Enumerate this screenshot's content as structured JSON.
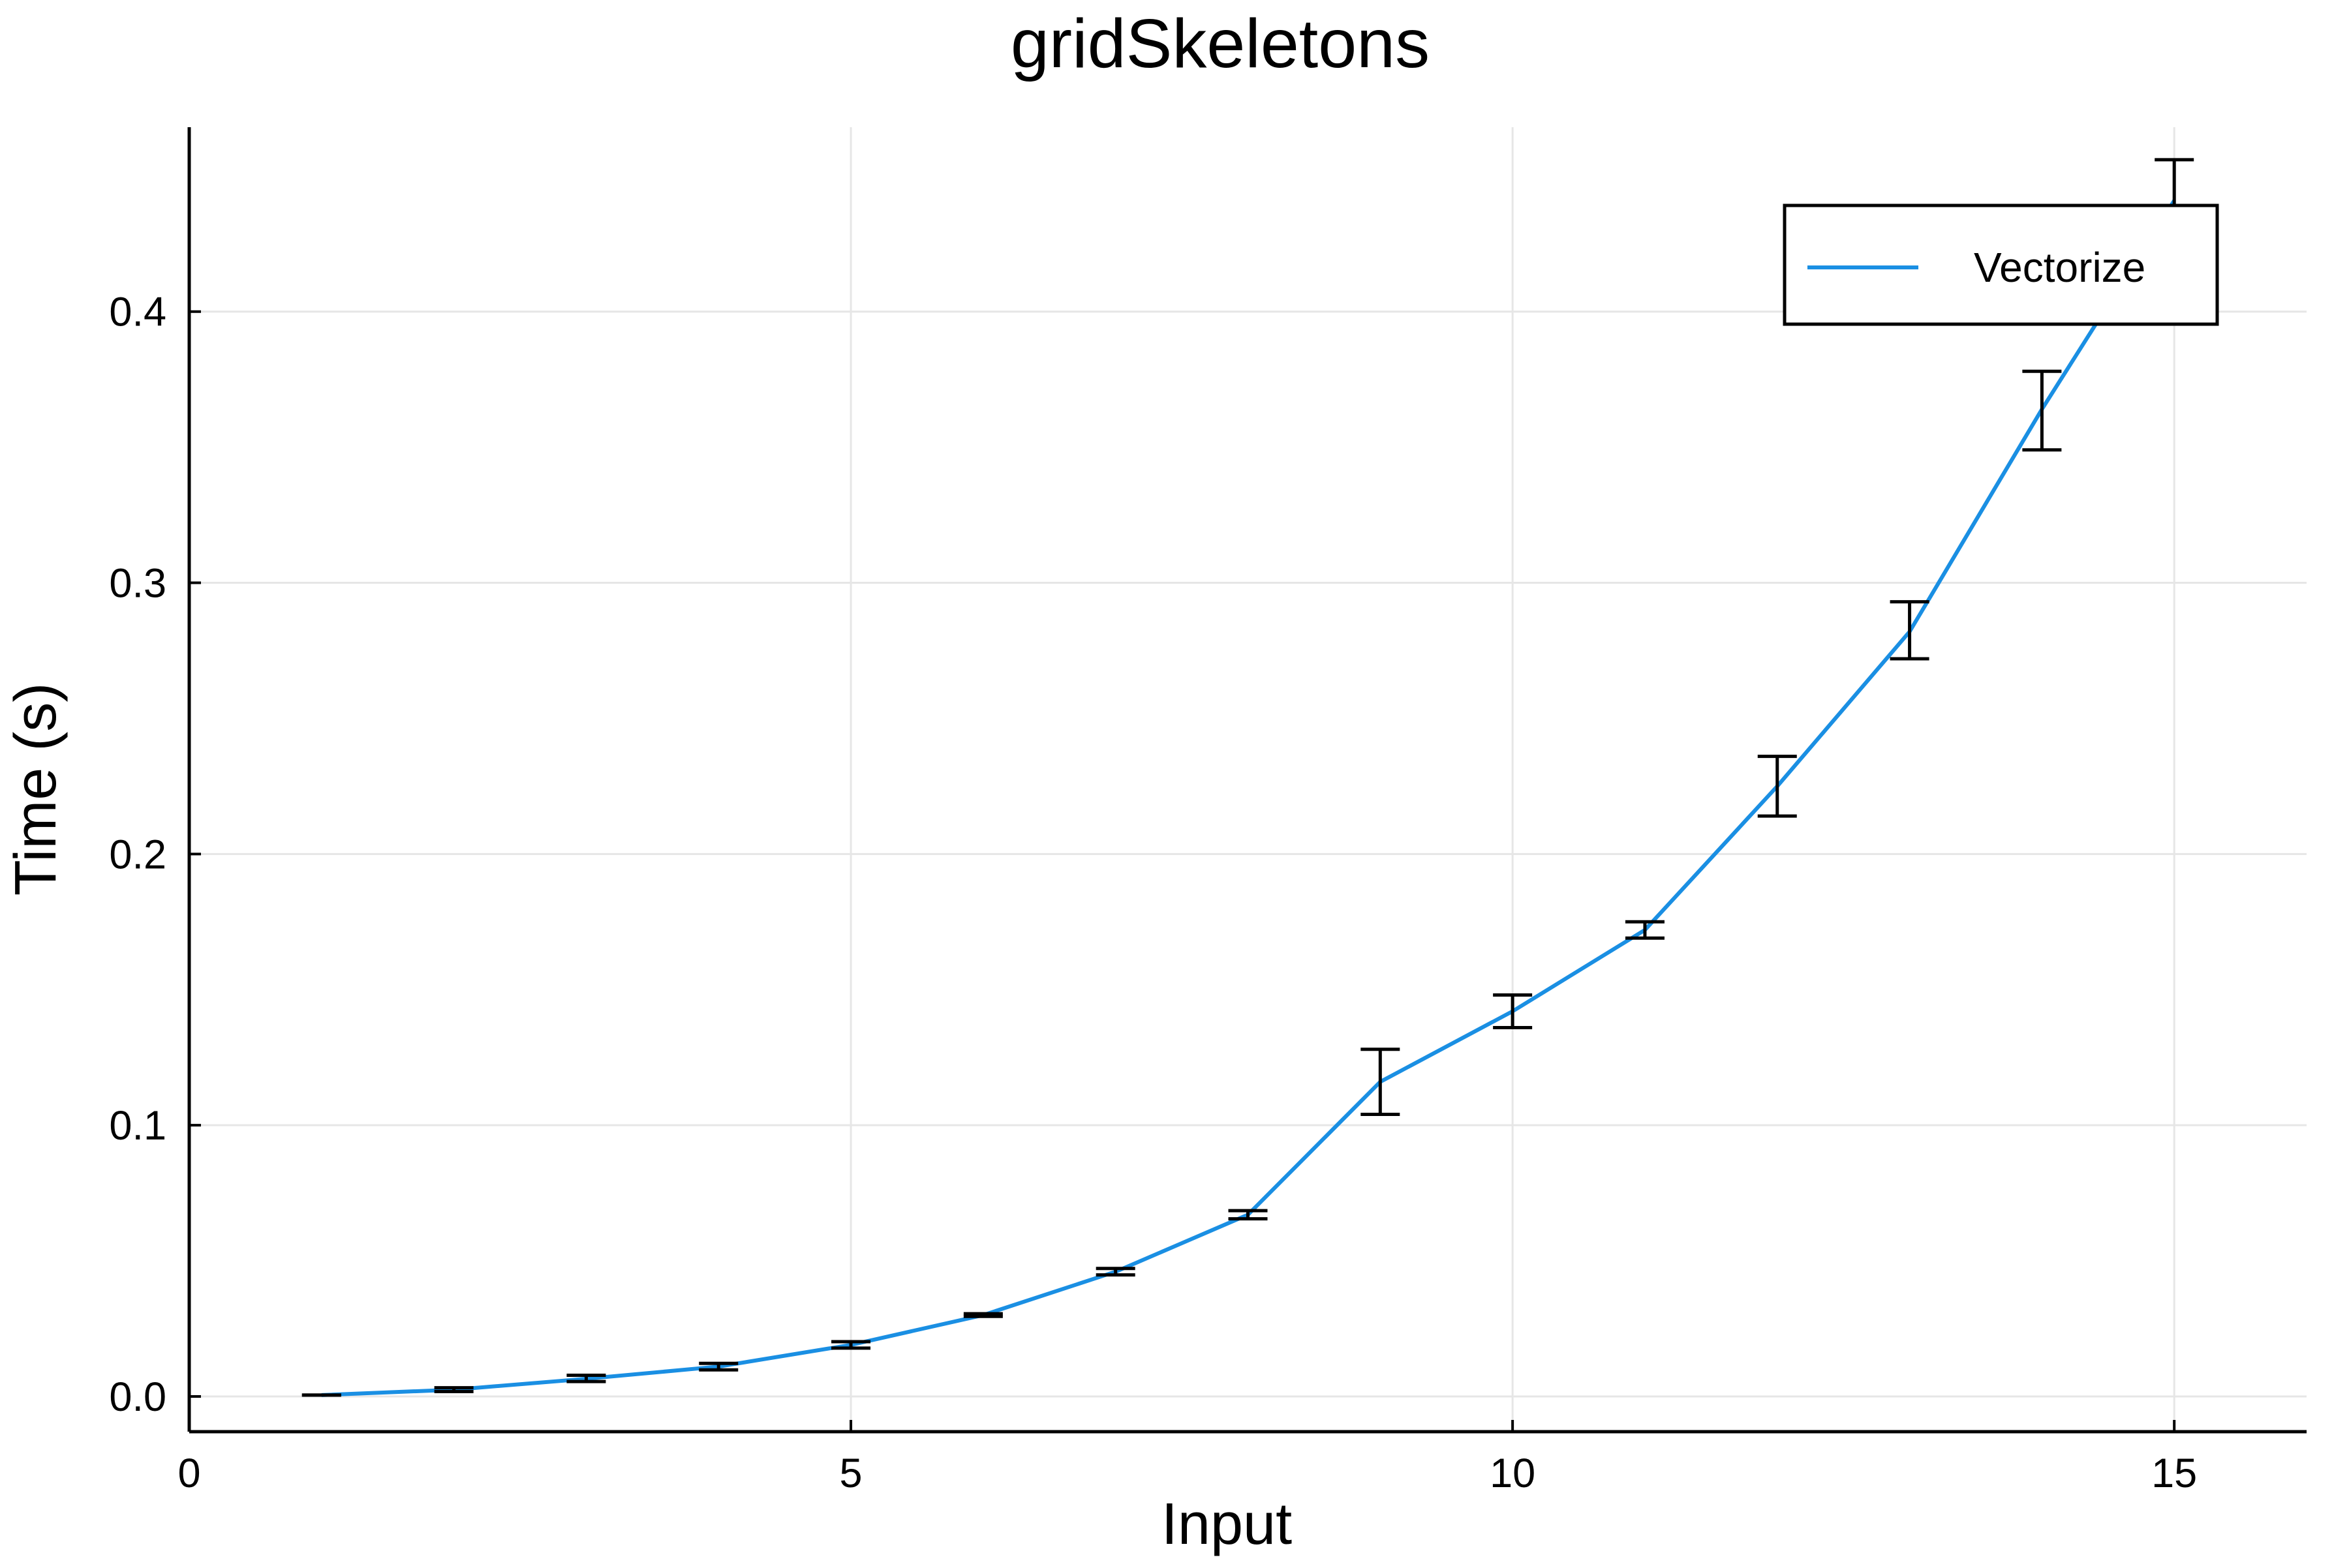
{
  "chart_data": {
    "type": "line",
    "title": "gridSkeletons",
    "xlabel": "Input",
    "ylabel": "Time (s)",
    "xlim": [
      0,
      16
    ],
    "ylim": [
      -0.013,
      0.468
    ],
    "xticks": [
      0,
      5,
      10,
      15
    ],
    "yticks": [
      0.0,
      0.1,
      0.2,
      0.3,
      0.4
    ],
    "xtick_labels": [
      "0",
      "5",
      "10",
      "15"
    ],
    "ytick_labels": [
      "0.0",
      "0.1",
      "0.2",
      "0.3",
      "0.4"
    ],
    "grid": true,
    "legend_position": "top-right",
    "series": [
      {
        "name": "Vectorize",
        "color": "#1a8fe3",
        "x": [
          1,
          2,
          3,
          4,
          5,
          6,
          7,
          8,
          9,
          10,
          11,
          12,
          13,
          14,
          15
        ],
        "y": [
          0.0005,
          0.0025,
          0.0065,
          0.011,
          0.019,
          0.03,
          0.046,
          0.067,
          0.116,
          0.142,
          0.172,
          0.225,
          0.282,
          0.364,
          0.441
        ],
        "error_low": [
          0.0005,
          0.0018,
          0.0055,
          0.0098,
          0.0178,
          0.0295,
          0.0448,
          0.0655,
          0.104,
          0.136,
          0.169,
          0.214,
          0.272,
          0.349,
          0.426
        ],
        "error_high": [
          0.0005,
          0.0032,
          0.0078,
          0.0122,
          0.0202,
          0.0305,
          0.0472,
          0.0685,
          0.128,
          0.148,
          0.175,
          0.236,
          0.293,
          0.378,
          0.456
        ]
      }
    ]
  }
}
